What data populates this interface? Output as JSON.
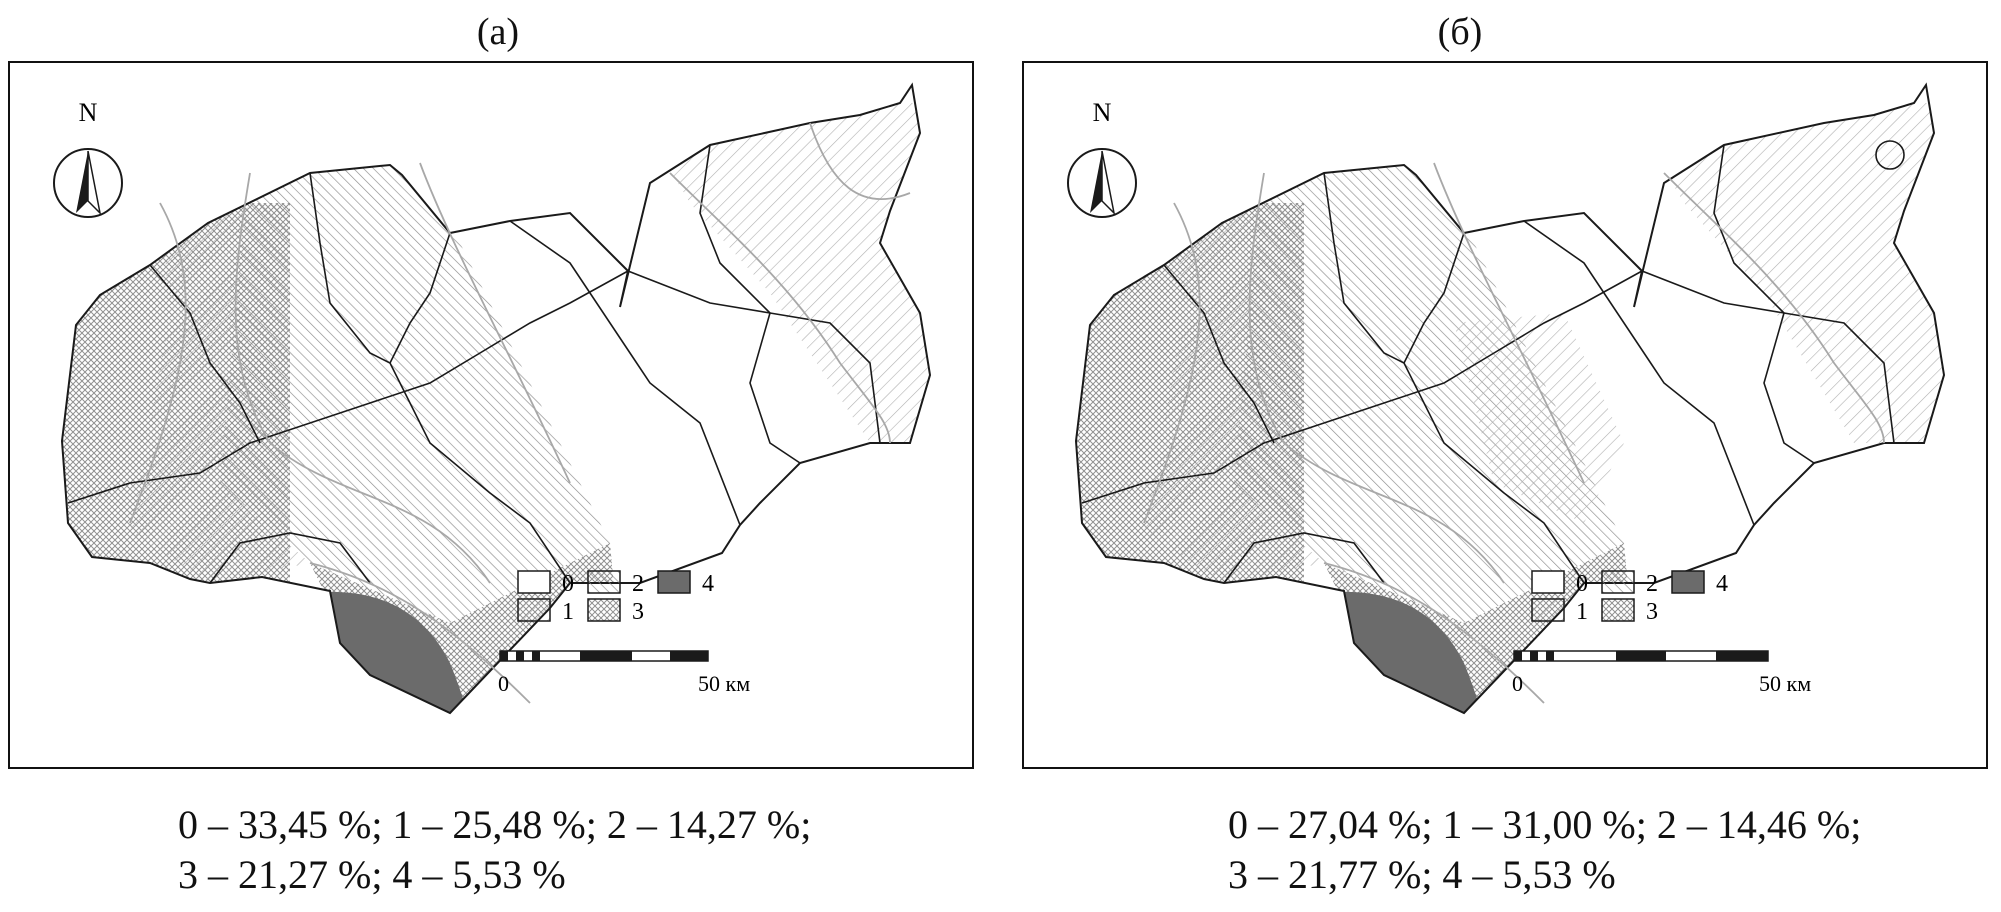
{
  "panels": [
    {
      "label": "(а)",
      "legend": [
        "0",
        "1",
        "2",
        "3",
        "4"
      ],
      "scale": {
        "start": "0",
        "end": "50 км"
      },
      "north": "N",
      "caption": [
        "0 – 33,45 %; 1 – 25,48 %; 2 – 14,27 %;",
        "3 – 21,27 %; 4 – 5,53 %"
      ],
      "class_shares": [
        33.45,
        25.48,
        14.27,
        21.27,
        5.53
      ]
    },
    {
      "label": "(б)",
      "legend": [
        "0",
        "1",
        "2",
        "3",
        "4"
      ],
      "scale": {
        "start": "0",
        "end": "50 км"
      },
      "north": "N",
      "caption": [
        "0 – 27,04 %; 1 – 31,00 %; 2 – 14,46 %;",
        "3 – 21,77 %; 4 – 5,53 %"
      ],
      "class_shares": [
        27.04,
        31.0,
        14.46,
        21.77,
        5.53
      ]
    }
  ],
  "colors": {
    "class4": "#6b6b6b",
    "border": "#1a1a1a",
    "isoline": "#a8a8a8"
  }
}
